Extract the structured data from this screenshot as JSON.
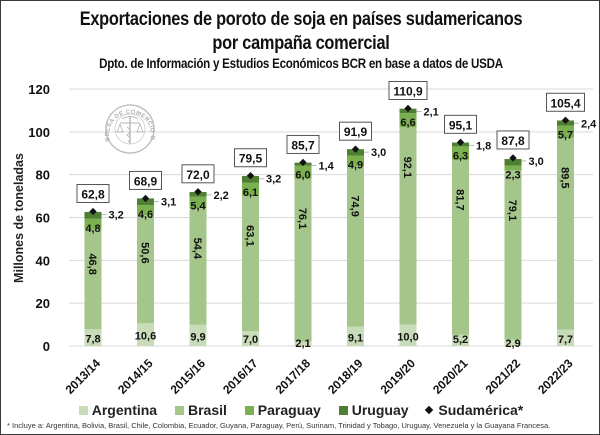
{
  "chart_data": {
    "type": "bar",
    "stacked": true,
    "title": "Exportaciones de poroto de soja en países sudamericanos",
    "title_line2": "por campaña comercial",
    "subtitle": "Dpto. de Información y Estudios Económicos BCR en base a datos de USDA",
    "xlabel": "",
    "ylabel": "Millones de toneladas",
    "ylim": [
      0,
      120
    ],
    "yticks": [
      0,
      20,
      40,
      60,
      80,
      100,
      120
    ],
    "ytick_labels": [
      "0",
      "20",
      "40",
      "60",
      "80",
      "100",
      "120"
    ],
    "grid": true,
    "legend_position": "bottom",
    "categories": [
      "2013/14",
      "2014/15",
      "2015/16",
      "2016/17",
      "2017/18",
      "2018/19",
      "2019/20",
      "2020/21",
      "2021/22",
      "2022/23"
    ],
    "series": [
      {
        "name": "Argentina",
        "color": "#c9dcb9",
        "values": [
          7.8,
          10.6,
          9.9,
          7.0,
          2.1,
          9.1,
          10.0,
          5.2,
          2.9,
          7.7
        ],
        "labels": [
          "7,8",
          "10,6",
          "9,9",
          "7,0",
          "2,1",
          "9,1",
          "10,0",
          "5,2",
          "2,9",
          "7,7"
        ]
      },
      {
        "name": "Brasil",
        "color": "#a4c68a",
        "values": [
          46.8,
          50.6,
          54.4,
          63.1,
          76.1,
          74.9,
          92.1,
          81.7,
          79.1,
          89.5
        ],
        "labels": [
          "46,8",
          "50,6",
          "54,4",
          "63,1",
          "76,1",
          "74,9",
          "92,1",
          "81,7",
          "79,1",
          "89,5"
        ]
      },
      {
        "name": "Paraguay",
        "color": "#7ab04f",
        "values": [
          4.8,
          4.6,
          5.4,
          6.1,
          6.0,
          4.9,
          6.6,
          6.3,
          2.3,
          5.7
        ],
        "labels": [
          "4,8",
          "4,6",
          "5,4",
          "6,1",
          "6,0",
          "4,9",
          "6,6",
          "6,3",
          "2,3",
          "5,7"
        ]
      },
      {
        "name": "Uruguay",
        "color": "#4f7f32",
        "values": [
          3.2,
          3.1,
          2.2,
          3.2,
          1.4,
          3.0,
          2.1,
          1.8,
          3.0,
          2.4
        ],
        "labels": [
          "3,2",
          "3,1",
          "2,2",
          "3,2",
          "1,4",
          "3,0",
          "2,1",
          "1,8",
          "3,0",
          "2,4"
        ]
      }
    ],
    "total_series": {
      "name": "Sudamérica*",
      "marker": "diamond",
      "values": [
        62.8,
        68.9,
        72.0,
        79.5,
        85.7,
        91.9,
        110.9,
        95.1,
        87.8,
        105.4
      ],
      "labels": [
        "62,8",
        "68,9",
        "72,0",
        "79,5",
        "85,7",
        "91,9",
        "110,9",
        "95,1",
        "87,8",
        "105,4"
      ]
    },
    "legend": [
      "Argentina",
      "Brasil",
      "Paraguay",
      "Uruguay",
      "Sudamérica*"
    ],
    "footnote": "* Incluye a: Argentina,  Bolivia, Brasil, Chile, Colombia, Ecuador, Guyana, Paraguay, Perú,  Surinam, Trinidad y Tobago,  Uruguay,  Venezuela  y la Guayana Francesa.",
    "watermark": "BOLSA DE COMERCIO DE ROSARIO"
  },
  "colors": {
    "grid": "#d9d9d9",
    "text": "#111111",
    "marker": "#111111"
  }
}
